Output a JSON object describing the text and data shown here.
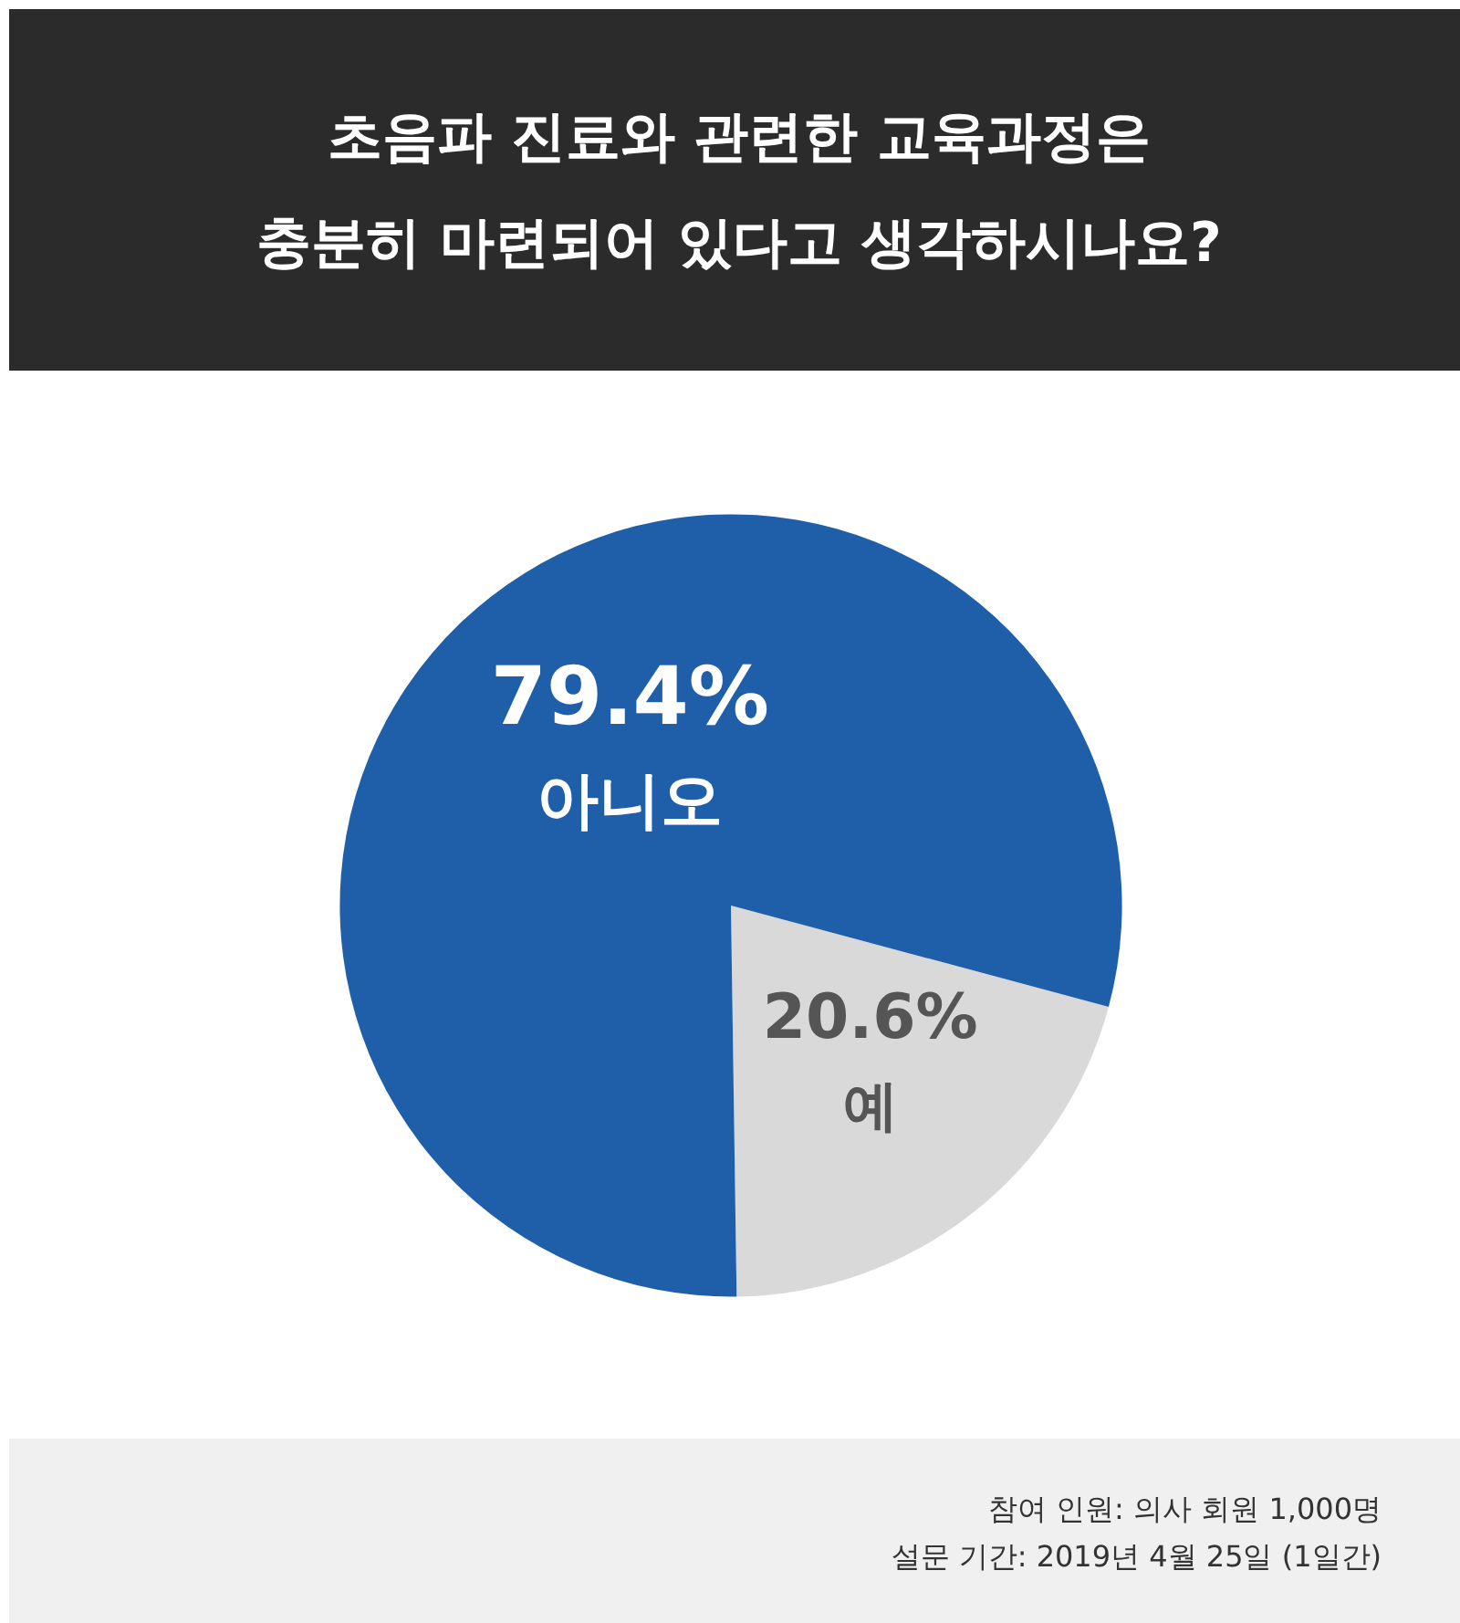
{
  "chart_data": {
    "type": "pie",
    "title": "초음파 진료와 관련한 교육과정은\n충분히 마련되어 있다고 생각하시나요?",
    "categories": [
      "예",
      "아니오"
    ],
    "values": [
      20.6,
      79.4
    ],
    "colors": [
      "#d9d9d9",
      "#1f5faa"
    ],
    "value_labels": [
      "20.6%",
      "79.4%"
    ],
    "annotations": [
      "참여 인원: 의사 회원 1,000명",
      "설문 기간: 2019년 4월 25일 (1일간)"
    ]
  }
}
